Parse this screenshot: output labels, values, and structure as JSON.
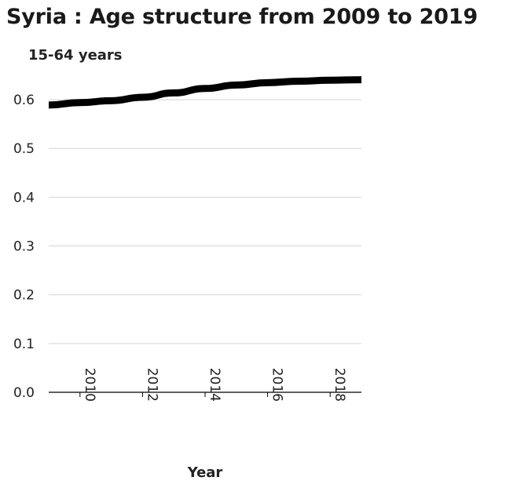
{
  "chart_data": {
    "type": "line",
    "title": "Syria : Age structure from 2009 to 2019",
    "ylabel": "15-64 years",
    "xlabel": "Year",
    "xlim": [
      2009,
      2019
    ],
    "ylim": [
      0,
      0.65
    ],
    "x_ticks": [
      2010,
      2012,
      2014,
      2016,
      2018
    ],
    "y_ticks": [
      "0.0",
      "0.1",
      "0.2",
      "0.3",
      "0.4",
      "0.5",
      "0.6"
    ],
    "grid": true,
    "series": [
      {
        "x": [
          2009,
          2010,
          2011,
          2012,
          2013,
          2014,
          2015,
          2016,
          2017,
          2018,
          2019
        ],
        "values": [
          0.589,
          0.594,
          0.598,
          0.605,
          0.614,
          0.623,
          0.63,
          0.635,
          0.638,
          0.64,
          0.641
        ],
        "color": "#000000"
      }
    ]
  }
}
